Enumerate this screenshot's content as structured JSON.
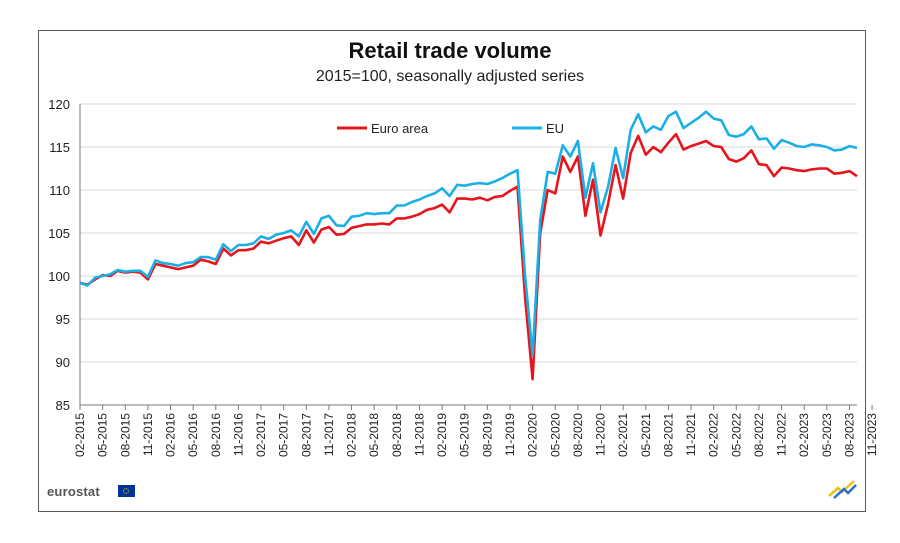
{
  "chart_data": {
    "type": "line",
    "title": "Retail trade volume",
    "subtitle": "2015=100, seasonally adjusted series",
    "xlabel": "",
    "ylabel": "",
    "ylim": [
      85,
      120
    ],
    "yticks": [
      85,
      90,
      95,
      100,
      105,
      110,
      115,
      120
    ],
    "x_start": "02-2015",
    "x_tick_labels": [
      "02-2015",
      "05-2015",
      "08-2015",
      "11-2015",
      "02-2016",
      "05-2016",
      "08-2016",
      "11-2016",
      "02-2017",
      "05-2017",
      "08-2017",
      "11-2017",
      "02-2018",
      "05-2018",
      "08-2018",
      "11-2018",
      "02-2019",
      "05-2019",
      "08-2019",
      "11-2019",
      "02-2020",
      "05-2020",
      "08-2020",
      "11-2020",
      "02-2021",
      "05-2021",
      "08-2021",
      "11-2021",
      "02-2022",
      "05-2022",
      "08-2022",
      "11-2022",
      "02-2023",
      "05-2023",
      "08-2023",
      "11-2023"
    ],
    "grid": "horizontal",
    "legend": "top",
    "series": [
      {
        "name": "Euro area",
        "color": "#e8141c",
        "values": [
          99.2,
          99.0,
          99.6,
          100.1,
          100.0,
          100.6,
          100.4,
          100.5,
          100.4,
          99.6,
          101.4,
          101.2,
          101.0,
          100.8,
          101.0,
          101.2,
          101.9,
          101.7,
          101.4,
          103.2,
          102.4,
          103.0,
          103.0,
          103.2,
          104.0,
          103.8,
          104.1,
          104.4,
          104.6,
          103.6,
          105.3,
          103.9,
          105.4,
          105.7,
          104.8,
          104.9,
          105.6,
          105.8,
          106.0,
          106.0,
          106.1,
          106.0,
          106.7,
          106.7,
          106.9,
          107.2,
          107.7,
          107.9,
          108.3,
          107.4,
          109.0,
          109.0,
          108.9,
          109.1,
          108.8,
          109.2,
          109.3,
          109.9,
          110.4,
          97.5,
          88.0,
          105.0,
          110.0,
          109.6,
          113.9,
          112.1,
          113.9,
          107.0,
          111.2,
          104.7,
          108.4,
          112.9,
          109.0,
          114.3,
          116.3,
          114.1,
          115.0,
          114.4,
          115.5,
          116.5,
          114.7,
          115.1,
          115.4,
          115.7,
          115.1,
          115.0,
          113.6,
          113.3,
          113.7,
          114.6,
          113.0,
          112.9,
          111.6,
          112.6,
          112.5,
          112.3,
          112.2,
          112.4,
          112.5,
          112.5,
          111.9,
          112.0,
          112.2,
          111.6
        ]
      },
      {
        "name": "EU",
        "color": "#1ab0e6",
        "values": [
          99.2,
          98.9,
          99.8,
          100.0,
          100.2,
          100.7,
          100.5,
          100.6,
          100.6,
          99.9,
          101.8,
          101.5,
          101.4,
          101.2,
          101.5,
          101.6,
          102.2,
          102.2,
          101.9,
          103.7,
          102.9,
          103.6,
          103.6,
          103.8,
          104.6,
          104.3,
          104.8,
          105.0,
          105.3,
          104.6,
          106.3,
          104.9,
          106.7,
          107.0,
          105.9,
          105.8,
          106.9,
          107.0,
          107.3,
          107.2,
          107.3,
          107.3,
          108.2,
          108.2,
          108.6,
          108.9,
          109.3,
          109.6,
          110.2,
          109.3,
          110.6,
          110.5,
          110.7,
          110.8,
          110.7,
          111.0,
          111.4,
          111.9,
          112.3,
          100.0,
          90.8,
          106.5,
          112.1,
          111.9,
          115.2,
          113.9,
          115.7,
          109.1,
          113.1,
          107.4,
          110.4,
          114.9,
          111.4,
          117.0,
          118.8,
          116.7,
          117.4,
          117.0,
          118.6,
          119.1,
          117.2,
          117.8,
          118.4,
          119.1,
          118.3,
          118.1,
          116.4,
          116.2,
          116.5,
          117.4,
          115.9,
          116.0,
          114.8,
          115.8,
          115.5,
          115.1,
          115.0,
          115.3,
          115.2,
          115.0,
          114.6,
          114.7,
          115.1,
          114.9
        ]
      }
    ]
  },
  "footer": {
    "brand": "eurostat"
  }
}
